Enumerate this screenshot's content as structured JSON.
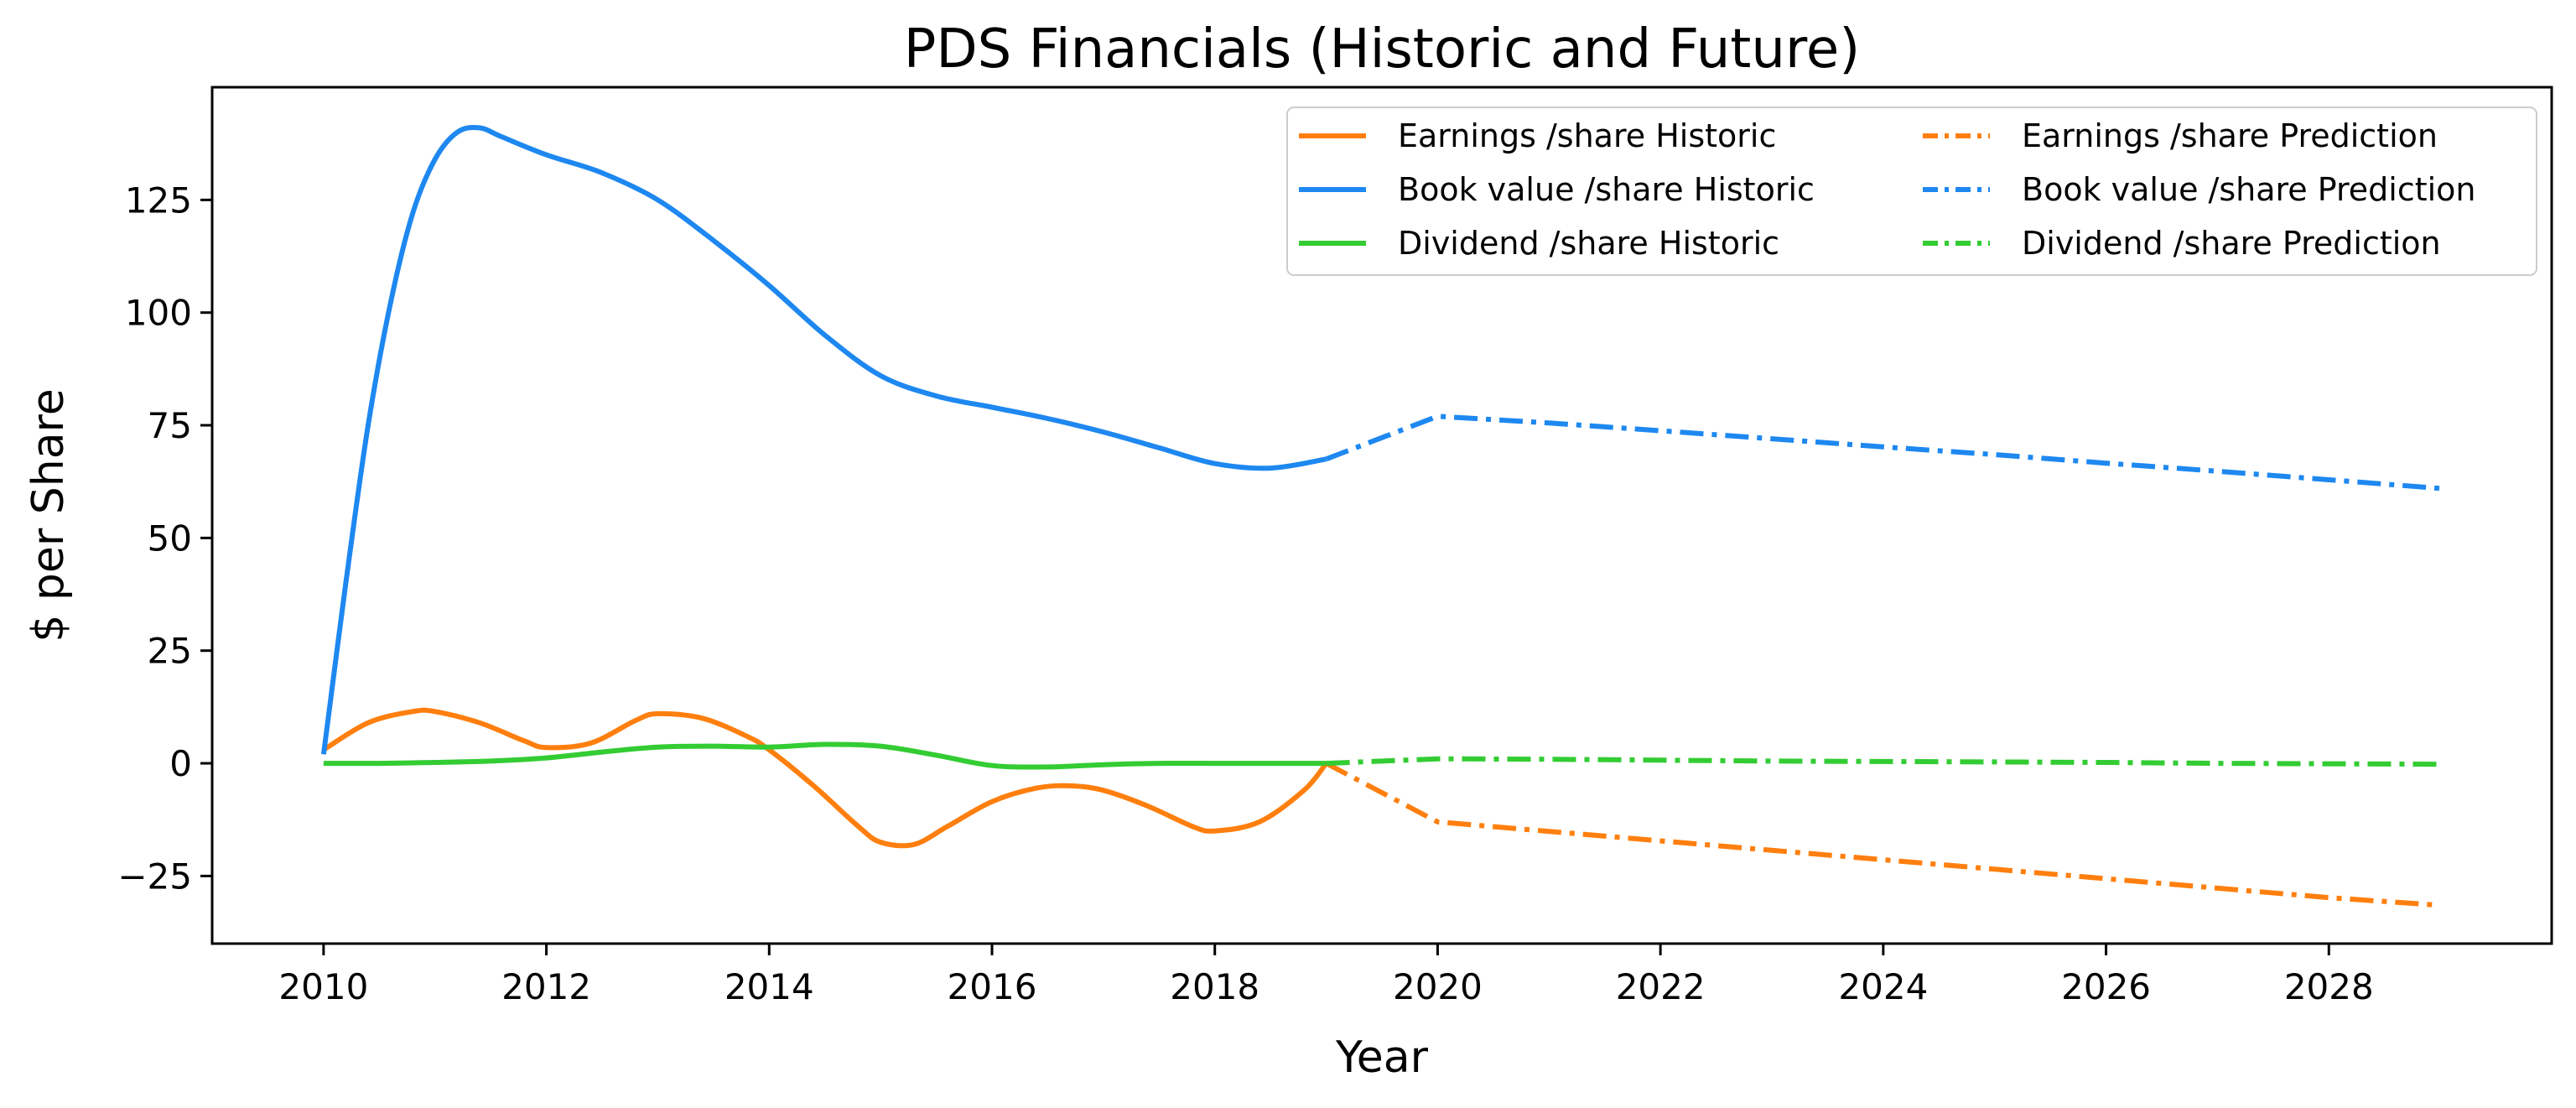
{
  "chart_data": {
    "type": "line",
    "title": "PDS Financials (Historic and Future)",
    "xlabel": "Year",
    "ylabel": "$ per Share",
    "xlim": [
      2009.0,
      2030.0
    ],
    "ylim": [
      -40,
      150
    ],
    "x_ticks": [
      2010,
      2012,
      2014,
      2016,
      2018,
      2020,
      2022,
      2024,
      2026,
      2028
    ],
    "x_tick_labels": [
      "2010",
      "2012",
      "2014",
      "2016",
      "2018",
      "2020",
      "2022",
      "2024",
      "2026",
      "2028"
    ],
    "y_ticks": [
      -25,
      0,
      25,
      50,
      75,
      100,
      125
    ],
    "y_tick_labels": [
      "−25",
      "0",
      "25",
      "50",
      "75",
      "100",
      "125"
    ],
    "grid": false,
    "legend_position": "top-right",
    "legend_columns": 2,
    "series": [
      {
        "name": "Earnings /share Historic",
        "color": "#ff7f0e",
        "style": "solid",
        "x": [
          2010.0,
          2010.4,
          2010.8,
          2011.0,
          2011.4,
          2011.8,
          2012.0,
          2012.4,
          2012.8,
          2013.0,
          2013.4,
          2013.8,
          2014.0,
          2014.4,
          2014.8,
          2015.0,
          2015.3,
          2015.6,
          2016.0,
          2016.4,
          2016.7,
          2017.0,
          2017.4,
          2017.8,
          2018.0,
          2018.4,
          2018.8,
          2019.0
        ],
        "y": [
          3,
          9,
          11.5,
          11.5,
          9,
          5,
          3.5,
          4.5,
          9.5,
          11,
          10,
          6,
          3,
          -5,
          -14,
          -17.5,
          -18,
          -14,
          -8.5,
          -5.5,
          -5,
          -6,
          -9.5,
          -14,
          -15,
          -13,
          -6,
          0
        ]
      },
      {
        "name": "Book value /share Historic",
        "color": "#1e88f0",
        "style": "solid",
        "x": [
          2010.0,
          2010.2,
          2010.4,
          2010.6,
          2010.8,
          2011.0,
          2011.2,
          2011.4,
          2011.6,
          2012.0,
          2012.5,
          2013.0,
          2013.5,
          2014.0,
          2014.5,
          2015.0,
          2015.5,
          2016.0,
          2016.5,
          2017.0,
          2017.5,
          2018.0,
          2018.5,
          2019.0
        ],
        "y": [
          2,
          40,
          75,
          102,
          122,
          134,
          140,
          141,
          139,
          135,
          131,
          125,
          116,
          106,
          95,
          86,
          81.5,
          79,
          76.5,
          73.5,
          70,
          66.5,
          65.5,
          67.5
        ]
      },
      {
        "name": "Dividend /share Historic",
        "color": "#33cc33",
        "style": "solid",
        "x": [
          2010.0,
          2010.5,
          2011.0,
          2011.5,
          2012.0,
          2012.5,
          2013.0,
          2013.5,
          2014.0,
          2014.5,
          2015.0,
          2015.5,
          2016.0,
          2016.5,
          2017.0,
          2017.5,
          2018.0,
          2018.5,
          2019.0
        ],
        "y": [
          0,
          0,
          0.2,
          0.5,
          1.2,
          2.5,
          3.6,
          3.8,
          3.6,
          4.2,
          3.8,
          1.8,
          -0.5,
          -0.8,
          -0.3,
          0,
          0,
          0,
          0
        ]
      },
      {
        "name": "Earnings /share Prediction",
        "color": "#ff7f0e",
        "style": "dashdot",
        "x": [
          2019,
          2020,
          2021,
          2022,
          2023,
          2024,
          2025,
          2026,
          2027,
          2028,
          2029
        ],
        "y": [
          0,
          -13,
          -15.1,
          -17.2,
          -19.3,
          -21.4,
          -23.5,
          -25.6,
          -27.7,
          -29.8,
          -31.5
        ]
      },
      {
        "name": "Book value /share Prediction",
        "color": "#1e88f0",
        "style": "dashdot",
        "x": [
          2019,
          2020,
          2021,
          2022,
          2023,
          2024,
          2025,
          2026,
          2027,
          2028,
          2029
        ],
        "y": [
          67.5,
          77,
          75.5,
          73.8,
          72,
          70.2,
          68.5,
          66.6,
          64.8,
          62.9,
          61
        ]
      },
      {
        "name": "Dividend /share Prediction",
        "color": "#33cc33",
        "style": "dashdot",
        "x": [
          2019,
          2020,
          2021,
          2022,
          2023,
          2024,
          2025,
          2026,
          2027,
          2028,
          2029
        ],
        "y": [
          0,
          1,
          0.9,
          0.7,
          0.5,
          0.4,
          0.3,
          0.2,
          0,
          -0.1,
          -0.2
        ]
      }
    ]
  }
}
